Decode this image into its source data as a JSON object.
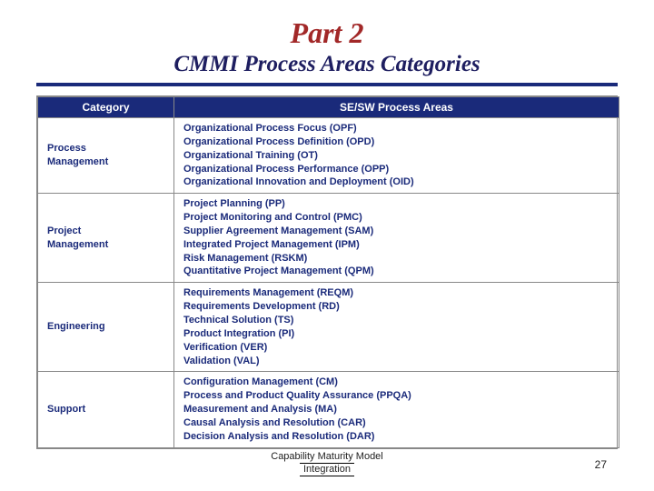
{
  "title": {
    "part": "Part 2",
    "subtitle": "CMMI Process Areas Categories",
    "part_color": "#a22828",
    "subtitle_color": "#1e1e60"
  },
  "divider_color": "#1a2a7a",
  "table": {
    "header_bg": "#1a2a7a",
    "header_fg": "#ffffff",
    "cell_text_color": "#1a2a7a",
    "columns": [
      "Category",
      "SE/SW Process Areas"
    ],
    "rows": [
      {
        "category": "Process\nManagement",
        "items": [
          "Organizational Process Focus  (OPF)",
          "Organizational Process Definition  (OPD)",
          "Organizational Training  (OT)",
          "Organizational Process Performance  (OPP)",
          "Organizational Innovation and Deployment  (OID)"
        ]
      },
      {
        "category": "Project\nManagement",
        "items": [
          "Project Planning  (PP)",
          "Project Monitoring and Control  (PMC)",
          "Supplier Agreement Management  (SAM)",
          "Integrated Project Management   (IPM)",
          "Risk Management  (RSKM)",
          "Quantitative Project Management  (QPM)"
        ]
      },
      {
        "category": "Engineering",
        "items": [
          "Requirements Management  (REQM)",
          "Requirements Development  (RD)",
          "Technical Solution  (TS)",
          "Product Integration  (PI)",
          "Verification  (VER)",
          "Validation  (VAL)"
        ]
      },
      {
        "category": "Support",
        "items": [
          "Configuration Management  (CM)",
          "Process and Product Quality Assurance  (PPQA)",
          "Measurement and Analysis  (MA)",
          "Causal Analysis and Resolution  (CAR)",
          "Decision Analysis and Resolution  (DAR)"
        ]
      }
    ]
  },
  "footer": {
    "line1": "Capability Maturity Model",
    "line2": "Integration"
  },
  "page_number": "27"
}
